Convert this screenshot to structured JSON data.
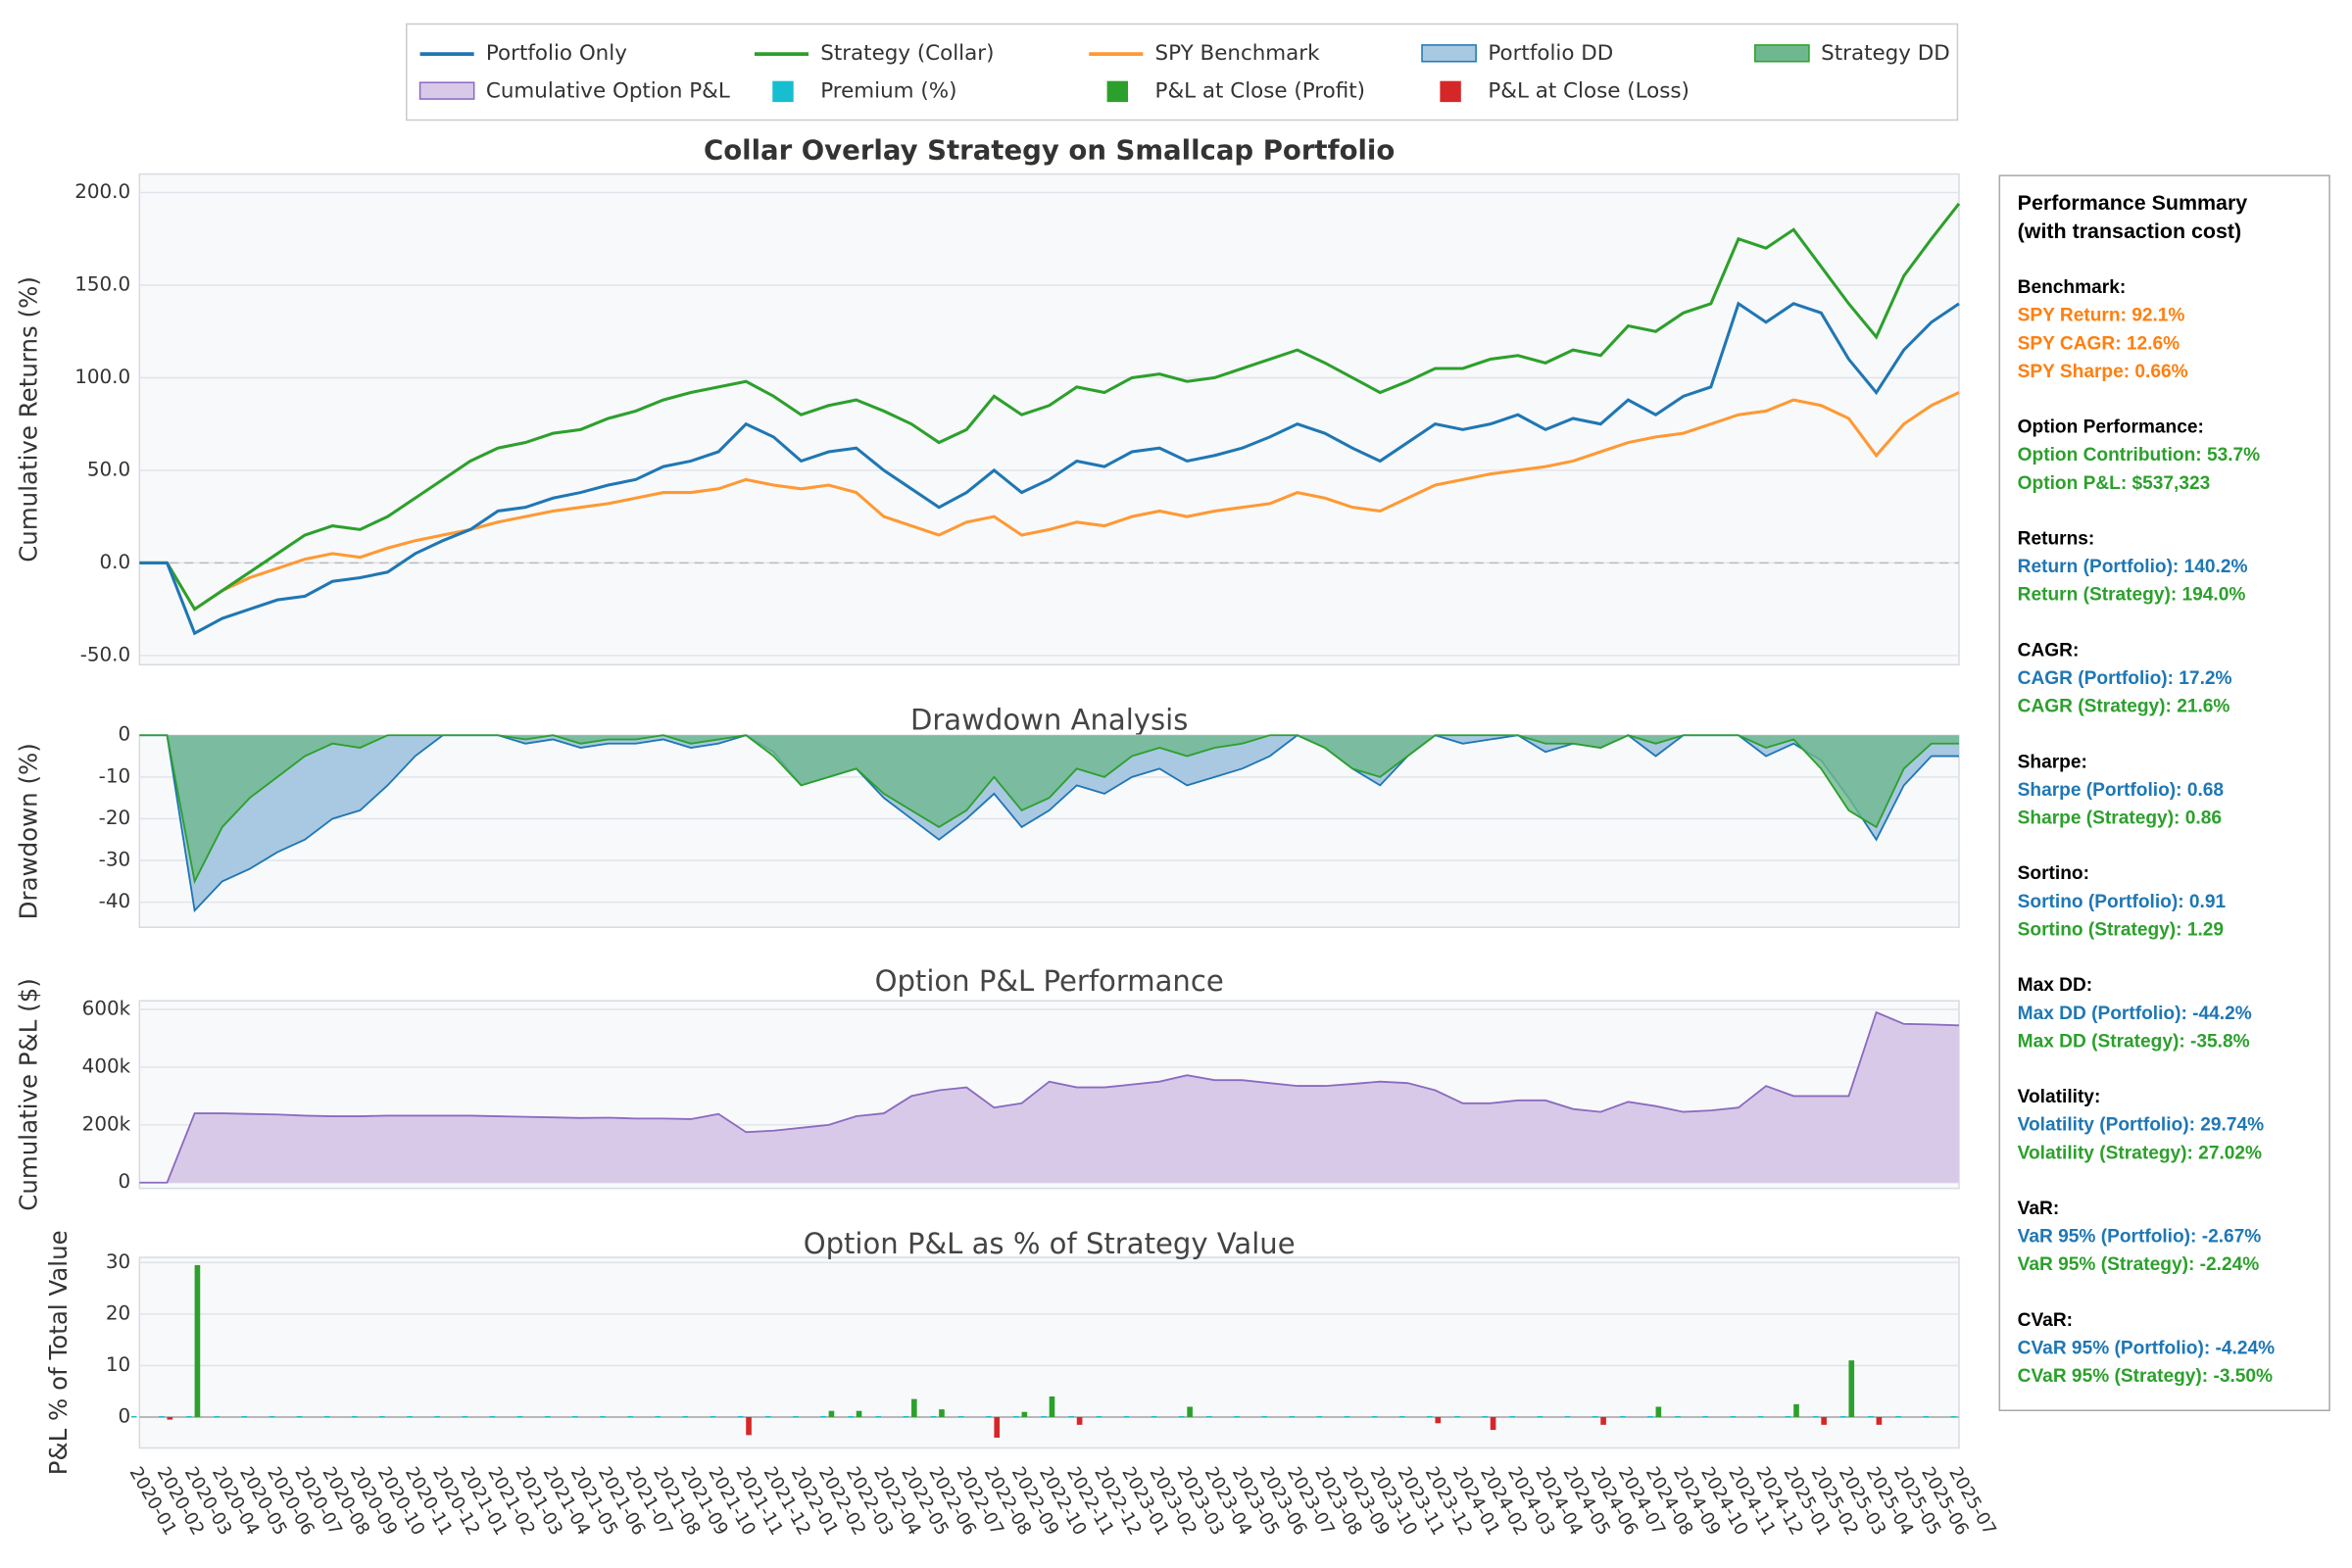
{
  "chart_data": [
    {
      "type": "line",
      "title": "Collar Overlay Strategy on Smallcap Portfolio",
      "ylabel": "Cumulative Returns (%)",
      "ylim": [
        -55,
        210
      ],
      "yticks": [
        {
          "value": -50,
          "label": "-50.0"
        },
        {
          "value": 0,
          "label": "0.0"
        },
        {
          "value": 50,
          "label": "50.0"
        },
        {
          "value": 100,
          "label": "100.0"
        },
        {
          "value": 150,
          "label": "150.0"
        },
        {
          "value": 200,
          "label": "200.0"
        }
      ],
      "grid": true,
      "series": [
        {
          "name": "Portfolio Only",
          "color": "#1f77b4",
          "values": [
            0,
            0,
            -38,
            -30,
            -25,
            -20,
            -18,
            -10,
            -8,
            -5,
            5,
            12,
            18,
            28,
            30,
            35,
            38,
            42,
            45,
            52,
            55,
            60,
            75,
            68,
            55,
            60,
            62,
            50,
            40,
            30,
            38,
            50,
            38,
            45,
            55,
            52,
            60,
            62,
            55,
            58,
            62,
            68,
            75,
            70,
            62,
            55,
            65,
            75,
            72,
            75,
            80,
            72,
            78,
            75,
            88,
            80,
            90,
            95,
            140,
            130,
            140,
            135,
            110,
            92,
            115,
            130,
            140
          ]
        },
        {
          "name": "Strategy (Collar)",
          "color": "#2ca02c",
          "values": [
            0,
            0,
            -25,
            -15,
            -5,
            5,
            15,
            20,
            18,
            25,
            35,
            45,
            55,
            62,
            65,
            70,
            72,
            78,
            82,
            88,
            92,
            95,
            98,
            90,
            80,
            85,
            88,
            82,
            75,
            65,
            72,
            90,
            80,
            85,
            95,
            92,
            100,
            102,
            98,
            100,
            105,
            110,
            115,
            108,
            100,
            92,
            98,
            105,
            105,
            110,
            112,
            108,
            115,
            112,
            128,
            125,
            135,
            140,
            175,
            170,
            180,
            160,
            140,
            122,
            155,
            175,
            194
          ]
        },
        {
          "name": "SPY Benchmark",
          "color": "#ff9933",
          "values": [
            0,
            0,
            -25,
            -15,
            -8,
            -3,
            2,
            5,
            3,
            8,
            12,
            15,
            18,
            22,
            25,
            28,
            30,
            32,
            35,
            38,
            38,
            40,
            45,
            42,
            40,
            42,
            38,
            25,
            20,
            15,
            22,
            25,
            15,
            18,
            22,
            20,
            25,
            28,
            25,
            28,
            30,
            32,
            38,
            35,
            30,
            28,
            35,
            42,
            45,
            48,
            50,
            52,
            55,
            60,
            65,
            68,
            70,
            75,
            80,
            82,
            88,
            85,
            78,
            58,
            75,
            85,
            92
          ]
        }
      ]
    },
    {
      "type": "area",
      "title": "Drawdown Analysis",
      "ylabel": "Drawdown (%)",
      "ylim": [
        -46,
        0
      ],
      "yticks": [
        0,
        -10,
        -20,
        -30,
        -40
      ],
      "grid": true,
      "series": [
        {
          "name": "Portfolio DD",
          "color": "#1f77b4",
          "fill": "#a9c8e2",
          "values": [
            0,
            0,
            -42,
            -35,
            -32,
            -28,
            -25,
            -20,
            -18,
            -12,
            -5,
            0,
            0,
            0,
            -2,
            -1,
            -3,
            -2,
            -2,
            -1,
            -3,
            -2,
            0,
            -4,
            -12,
            -10,
            -8,
            -15,
            -20,
            -25,
            -20,
            -14,
            -22,
            -18,
            -12,
            -14,
            -10,
            -8,
            -12,
            -10,
            -8,
            -5,
            0,
            -3,
            -8,
            -12,
            -5,
            0,
            -2,
            -1,
            0,
            -4,
            -2,
            -3,
            0,
            -5,
            0,
            0,
            0,
            -5,
            -2,
            -6,
            -15,
            -25,
            -12,
            -5,
            -5
          ]
        },
        {
          "name": "Strategy DD",
          "color": "#2ca02c",
          "fill": "#6fb88f",
          "values": [
            0,
            0,
            -35,
            -22,
            -15,
            -10,
            -5,
            -2,
            -3,
            0,
            0,
            0,
            0,
            0,
            -1,
            0,
            -2,
            -1,
            -1,
            0,
            -2,
            -1,
            0,
            -5,
            -12,
            -10,
            -8,
            -14,
            -18,
            -22,
            -18,
            -10,
            -18,
            -15,
            -8,
            -10,
            -5,
            -3,
            -5,
            -3,
            -2,
            0,
            0,
            -3,
            -8,
            -10,
            -5,
            0,
            0,
            0,
            0,
            -2,
            -2,
            -3,
            0,
            -2,
            0,
            0,
            0,
            -3,
            -1,
            -8,
            -18,
            -22,
            -8,
            -2,
            -2
          ]
        }
      ]
    },
    {
      "type": "area",
      "title": "Option P&L Performance",
      "ylabel": "Cumulative P&L ($)",
      "ylim": [
        -20000,
        630000
      ],
      "yticks": [
        0,
        {
          "value": 200000,
          "label": "200k"
        },
        {
          "value": 400000,
          "label": "400k"
        },
        {
          "value": 600000,
          "label": "600k"
        }
      ],
      "grid": true,
      "series": [
        {
          "name": "Cumulative Option P&L",
          "color": "#8a6bbf",
          "fill": "#d9c9e8",
          "values": [
            0,
            0,
            240000,
            240000,
            238000,
            236000,
            232000,
            230000,
            230000,
            232000,
            232000,
            232000,
            232000,
            230000,
            228000,
            226000,
            224000,
            225000,
            222000,
            222000,
            220000,
            238000,
            175000,
            180000,
            190000,
            200000,
            230000,
            240000,
            300000,
            320000,
            330000,
            260000,
            275000,
            350000,
            330000,
            330000,
            340000,
            350000,
            372000,
            355000,
            355000,
            345000,
            335000,
            335000,
            342000,
            350000,
            345000,
            320000,
            275000,
            275000,
            285000,
            285000,
            255000,
            245000,
            280000,
            265000,
            245000,
            250000,
            260000,
            335000,
            300000,
            300000,
            300000,
            590000,
            550000,
            548000,
            545000
          ]
        }
      ]
    },
    {
      "type": "bar",
      "title": "Option P&L as % of Strategy Value",
      "ylabel": "P&L % of Total Value",
      "ylim": [
        -6,
        31
      ],
      "yticks": [
        0,
        10,
        20,
        30
      ],
      "grid": true,
      "categories": [
        "2020-01",
        "2020-02",
        "2020-03",
        "2020-04",
        "2020-05",
        "2020-06",
        "2020-07",
        "2020-08",
        "2020-09",
        "2020-10",
        "2020-11",
        "2020-12",
        "2021-01",
        "2021-02",
        "2021-03",
        "2021-04",
        "2021-05",
        "2021-06",
        "2021-07",
        "2021-08",
        "2021-09",
        "2021-10",
        "2021-11",
        "2021-12",
        "2022-01",
        "2022-02",
        "2022-03",
        "2022-04",
        "2022-05",
        "2022-06",
        "2022-07",
        "2022-08",
        "2022-09",
        "2022-10",
        "2022-11",
        "2022-12",
        "2023-01",
        "2023-02",
        "2023-03",
        "2023-04",
        "2023-05",
        "2023-06",
        "2023-07",
        "2023-08",
        "2023-09",
        "2023-10",
        "2023-11",
        "2023-12",
        "2024-01",
        "2024-02",
        "2024-03",
        "2024-04",
        "2024-05",
        "2024-06",
        "2024-07",
        "2024-08",
        "2024-09",
        "2024-10",
        "2024-11",
        "2024-12",
        "2025-01",
        "2025-02",
        "2025-03",
        "2025-04",
        "2025-05",
        "2025-06",
        "2025-07"
      ],
      "series": [
        {
          "name": "Premium (%)",
          "color": "#17becf",
          "values": [
            0.2,
            0.2,
            0.2,
            0.2,
            0.2,
            0.2,
            0.2,
            0.2,
            0.2,
            0.2,
            0.2,
            0.2,
            0.2,
            0.2,
            0.2,
            0.2,
            0.2,
            0.2,
            0.2,
            0.2,
            0.2,
            0.2,
            0.2,
            0.2,
            0.2,
            0.2,
            0.2,
            0.2,
            0.2,
            0.2,
            0.2,
            0.2,
            0.2,
            0.2,
            0.2,
            0.2,
            0.2,
            0.2,
            0.2,
            0.2,
            0.2,
            0.2,
            0.2,
            0.2,
            0.2,
            0.2,
            0.2,
            0.2,
            0.2,
            0.2,
            0.2,
            0.2,
            0.2,
            0.2,
            0.2,
            0.2,
            0.2,
            0.2,
            0.2,
            0.2,
            0.2,
            0.2,
            0.2,
            0.2,
            0.2,
            0.2,
            0.2
          ]
        },
        {
          "name": "P&L at Close (Profit)",
          "color": "#2ca02c",
          "values": [
            null,
            null,
            29.5,
            null,
            null,
            null,
            null,
            null,
            null,
            null,
            null,
            null,
            null,
            null,
            null,
            null,
            null,
            null,
            null,
            null,
            null,
            null,
            null,
            null,
            null,
            1.2,
            1.2,
            null,
            3.5,
            1.5,
            null,
            null,
            1,
            4,
            null,
            null,
            null,
            null,
            2,
            null,
            null,
            null,
            null,
            null,
            null,
            null,
            null,
            null,
            null,
            null,
            null,
            null,
            null,
            null,
            null,
            2,
            null,
            null,
            null,
            null,
            2.5,
            null,
            11,
            null,
            null,
            null,
            null
          ]
        },
        {
          "name": "P&L at Close (Loss)",
          "color": "#d62728",
          "values": [
            null,
            -0.5,
            null,
            null,
            null,
            null,
            null,
            null,
            null,
            null,
            null,
            null,
            null,
            null,
            null,
            null,
            null,
            null,
            null,
            null,
            null,
            null,
            -3.5,
            null,
            null,
            null,
            null,
            null,
            null,
            null,
            null,
            -4,
            null,
            null,
            -1.5,
            null,
            null,
            null,
            null,
            null,
            null,
            null,
            null,
            null,
            null,
            null,
            null,
            -1.2,
            null,
            -2.5,
            null,
            null,
            null,
            -1.5,
            null,
            null,
            null,
            null,
            null,
            null,
            null,
            -1.5,
            null,
            -1.5,
            null,
            null,
            null
          ]
        }
      ]
    }
  ],
  "summary": {
    "title": [
      "Performance Summary",
      "(with transaction cost)"
    ],
    "sections": [
      {
        "heading": "Benchmark:",
        "lines": [
          {
            "text": "SPY Return: 92.1%",
            "color": "#ff7f0e"
          },
          {
            "text": "SPY CAGR: 12.6%",
            "color": "#ff7f0e"
          },
          {
            "text": "SPY Sharpe: 0.66%",
            "color": "#ff7f0e"
          }
        ]
      },
      {
        "heading": "Option Performance:",
        "lines": [
          {
            "text": "Option Contribution: 53.7%",
            "color": "#2ca02c"
          },
          {
            "text": "Option P&L: $537,323",
            "color": "#2ca02c"
          }
        ]
      },
      {
        "heading": "Returns:",
        "lines": [
          {
            "text": "Return (Portfolio): 140.2%",
            "color": "#1f77b4"
          },
          {
            "text": "Return (Strategy): 194.0%",
            "color": "#2ca02c"
          }
        ]
      },
      {
        "heading": "CAGR:",
        "lines": [
          {
            "text": "CAGR (Portfolio): 17.2%",
            "color": "#1f77b4"
          },
          {
            "text": "CAGR (Strategy): 21.6%",
            "color": "#2ca02c"
          }
        ]
      },
      {
        "heading": "Sharpe:",
        "lines": [
          {
            "text": "Sharpe (Portfolio): 0.68",
            "color": "#1f77b4"
          },
          {
            "text": "Sharpe (Strategy): 0.86",
            "color": "#2ca02c"
          }
        ]
      },
      {
        "heading": "Sortino:",
        "lines": [
          {
            "text": "Sortino (Portfolio): 0.91",
            "color": "#1f77b4"
          },
          {
            "text": "Sortino (Strategy): 1.29",
            "color": "#2ca02c"
          }
        ]
      },
      {
        "heading": "Max DD:",
        "lines": [
          {
            "text": "Max DD (Portfolio): -44.2%",
            "color": "#1f77b4"
          },
          {
            "text": "Max DD (Strategy): -35.8%",
            "color": "#2ca02c"
          }
        ]
      },
      {
        "heading": "Volatility:",
        "lines": [
          {
            "text": "Volatility (Portfolio): 29.74%",
            "color": "#1f77b4"
          },
          {
            "text": "Volatility (Strategy): 27.02%",
            "color": "#2ca02c"
          }
        ]
      },
      {
        "heading": "VaR:",
        "lines": [
          {
            "text": "VaR 95% (Portfolio): -2.67%",
            "color": "#1f77b4"
          },
          {
            "text": "VaR 95% (Strategy): -2.24%",
            "color": "#2ca02c"
          }
        ]
      },
      {
        "heading": "CVaR:",
        "lines": [
          {
            "text": "CVaR 95% (Portfolio): -4.24%",
            "color": "#1f77b4"
          },
          {
            "text": "CVaR 95% (Strategy): -3.50%",
            "color": "#2ca02c"
          }
        ]
      }
    ]
  }
}
